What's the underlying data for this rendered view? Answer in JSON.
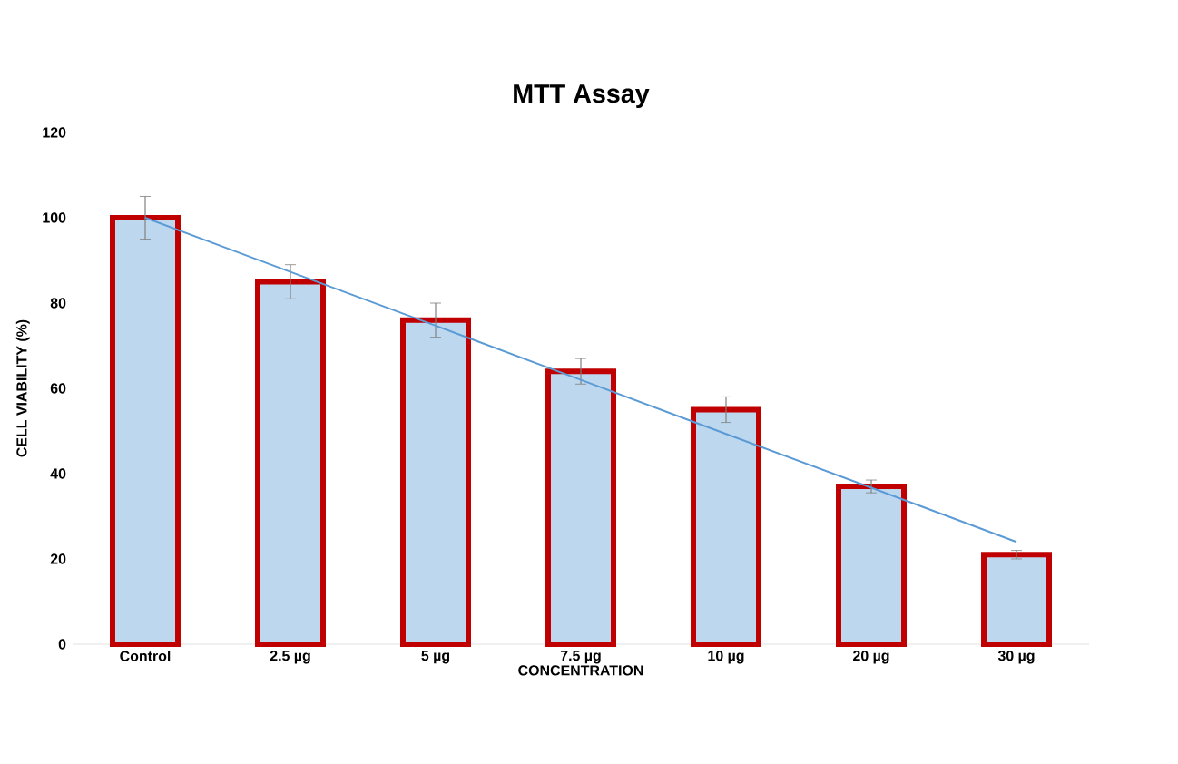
{
  "chart_data": {
    "type": "bar",
    "title": "MTT Assay",
    "xlabel": "CONCENTRATION",
    "ylabel": "CELL VIABILITY (%)",
    "categories": [
      "Control",
      "2.5 µg",
      "5 µg",
      "7.5 µg",
      "10 µg",
      "20 µg",
      "30 µg"
    ],
    "series": [
      {
        "color": "#bdd7ee",
        "values": [
          100,
          85,
          76,
          64,
          55,
          37,
          21
        ],
        "errors": [
          5,
          4,
          4,
          3,
          3,
          1.5,
          1
        ]
      },
      {
        "type": "line",
        "color": "#5b9bd5",
        "values": [
          100,
          87.3,
          74.7,
          62,
          49.3,
          36.7,
          24
        ]
      }
    ],
    "ylim": [
      0,
      120
    ],
    "yticks": [
      0,
      20,
      40,
      60,
      80,
      100,
      120
    ],
    "grid": false
  }
}
